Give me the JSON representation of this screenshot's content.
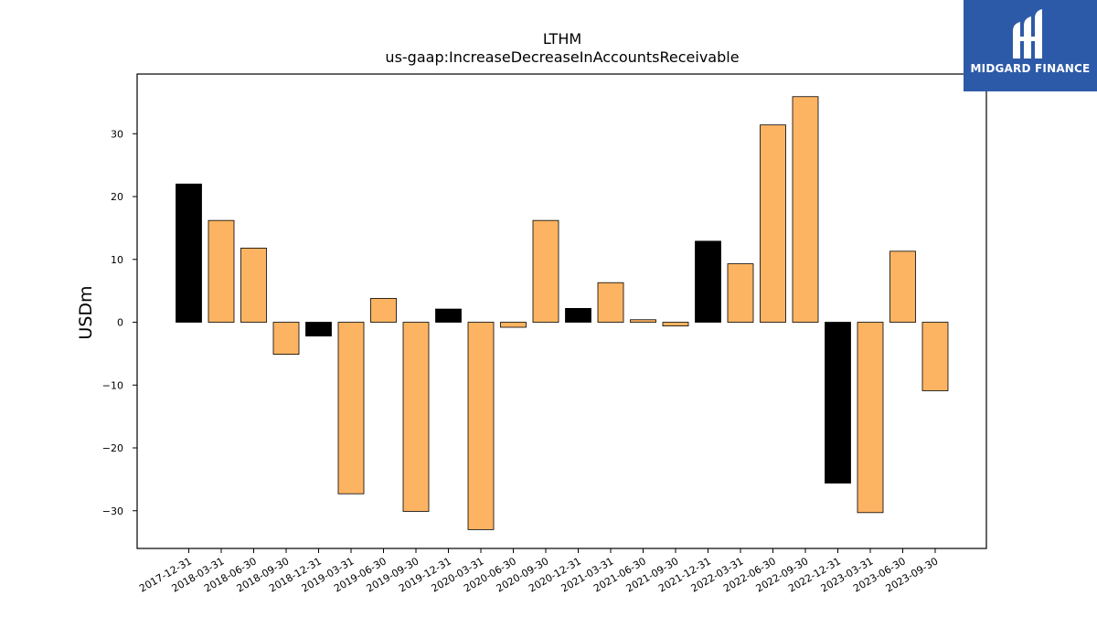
{
  "chart_data": {
    "type": "bar",
    "title": "LTHM",
    "subtitle": "us-gaap:IncreaseDecreaseInAccountsReceivable",
    "xlabel": "",
    "ylabel": "USDm",
    "ylim": [
      -36,
      39.5
    ],
    "yticks": [
      -30,
      -20,
      -10,
      0,
      10,
      20,
      30
    ],
    "grid": false,
    "categories": [
      "2017-12-31",
      "2018-03-31",
      "2018-06-30",
      "2018-09-30",
      "2018-12-31",
      "2019-03-31",
      "2019-06-30",
      "2019-09-30",
      "2019-12-31",
      "2020-03-31",
      "2020-06-30",
      "2020-09-30",
      "2020-12-31",
      "2021-03-31",
      "2021-06-30",
      "2021-09-30",
      "2021-12-31",
      "2022-03-31",
      "2022-06-30",
      "2022-09-30",
      "2022-12-31",
      "2023-03-31",
      "2023-06-30",
      "2023-09-30"
    ],
    "values": [
      22.0,
      16.2,
      11.8,
      -5.1,
      -2.2,
      -27.3,
      3.8,
      -30.1,
      2.1,
      -33.0,
      -0.8,
      16.2,
      2.2,
      6.3,
      0.4,
      -0.6,
      12.9,
      9.3,
      31.4,
      35.9,
      -25.6,
      -30.3,
      11.3,
      -10.9
    ],
    "fiscal_year_end": [
      true,
      false,
      false,
      false,
      true,
      false,
      false,
      false,
      true,
      false,
      false,
      false,
      true,
      false,
      false,
      false,
      true,
      false,
      false,
      false,
      true,
      false,
      false,
      false
    ],
    "colors": {
      "quarter": "#fdb462",
      "year_end": "#000000",
      "edge": "#000000"
    }
  },
  "logo": {
    "text": "MIDGARD FINANCE",
    "background": "#2d5aa8"
  }
}
